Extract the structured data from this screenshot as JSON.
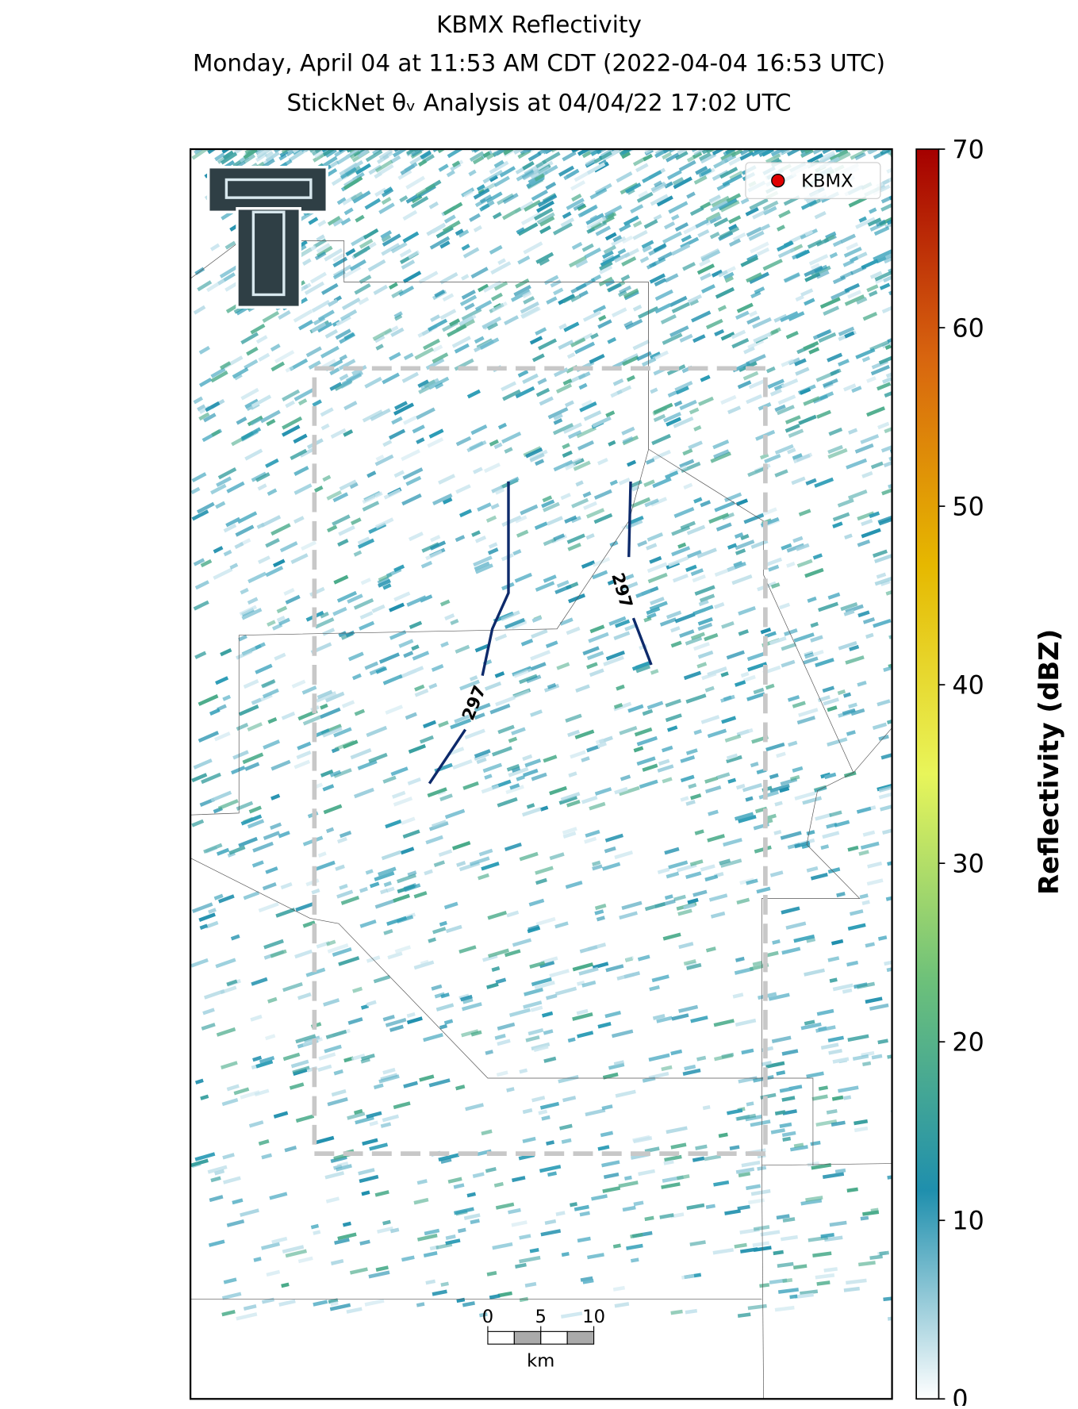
{
  "chart_data": {
    "type": "radar-map",
    "title": "KBMX Reflectivity",
    "subtitle": "Monday, April 04 at 11:53 AM CDT (2022-04-04 16:53 UTC)",
    "analysis": "StickNet θᵥ Analysis at 04/04/22 17:02 UTC",
    "legend": {
      "label": "KBMX",
      "color": "#e00000",
      "corner": "upper right"
    },
    "colorbar": {
      "label": "Reflectivity (dBZ)",
      "lim": [
        0,
        70
      ],
      "ticks": [
        0,
        10,
        20,
        30,
        40,
        50,
        60,
        70
      ],
      "colors": [
        "#ffffff",
        "#1f8fad",
        "#6cc07a",
        "#e8f55a",
        "#e6b800",
        "#d8650f",
        "#a50000"
      ]
    },
    "contours": [
      {
        "value": 297,
        "color": "#0d2a6b"
      },
      {
        "value": 297,
        "color": "#0d2a6b"
      }
    ],
    "scale_bar": {
      "ticks": [
        0,
        5,
        10
      ],
      "unit": "km"
    }
  }
}
